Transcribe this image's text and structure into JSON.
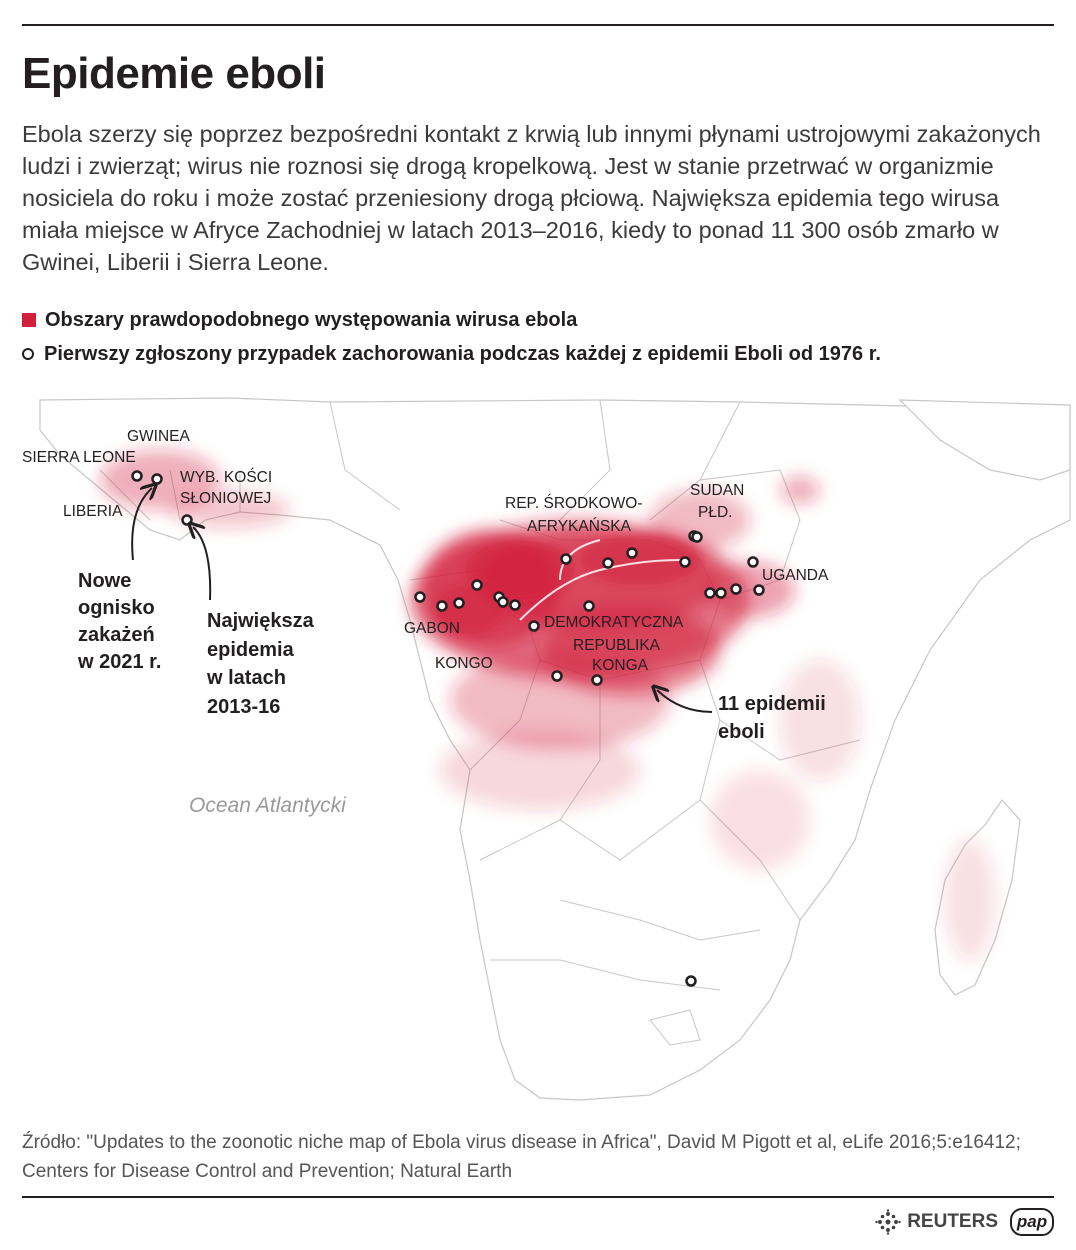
{
  "title": "Epidemie eboli",
  "intro": "Ebola szerzy się poprzez bezpośredni kontakt z krwią lub innymi płynami ustrojowymi zakażonych ludzi i zwierząt; wirus nie roznosi się drogą kropelkową. Jest w stanie przetrwać w organizmie nosiciela do roku i może zostać przeniesiony drogą płciową. Największa epidemia tego wirusa miała miejsce w Afryce Zachodniej w latach 2013–2016, kiedy to ponad 11 300 osób zmarło w Gwinei, Liberii i Sierra Leone.",
  "legend": {
    "area": "Obszary prawdopodobnego występowania wirusa ebola",
    "point": "Pierwszy zgłoszony przypadek zachorowania podczas każdej z epidemii Eboli od 1976 r."
  },
  "map": {
    "countries": {
      "gwinea": "GWINEA",
      "sierra_leone": "SIERRA LEONE",
      "liberia": "LIBERIA",
      "ivory_coast_1": "WYB. KOŚCI",
      "ivory_coast_2": "SŁONIOWEJ",
      "car_1": "REP. ŚRODKOWO-",
      "car_2": "AFRYKAŃSKA",
      "south_sudan_1": "SUDAN",
      "south_sudan_2": "PŁD.",
      "uganda": "UGANDA",
      "gabon": "GABON",
      "kongo": "KONGO",
      "drc_1": "DEMOKRATYCZNA",
      "drc_2": "REPUBLIKA",
      "drc_3": "KONGA"
    },
    "annotations": {
      "new_outbreak": [
        "Nowe",
        "ognisko",
        "zakażeń",
        "w 2021 r."
      ],
      "largest": [
        "Największa",
        "epidemia",
        "w latach",
        "2013-16"
      ],
      "eleven": [
        "11 epidemii",
        "eboli"
      ]
    },
    "ocean": "Ocean Atlantycki"
  },
  "source": "Źródło: \"Updates to the zoonotic niche map of Ebola virus disease in Africa\", David M Pigott et al, eLife 2016;5:e16412; Centers for Disease Control and Prevention; Natural Earth",
  "credits": {
    "reuters": "REUTERS",
    "pap": "pap"
  },
  "colors": {
    "risk": "#d21f3c",
    "land": "#ffffff",
    "border": "#c7c7c7",
    "text": "#231f20"
  }
}
